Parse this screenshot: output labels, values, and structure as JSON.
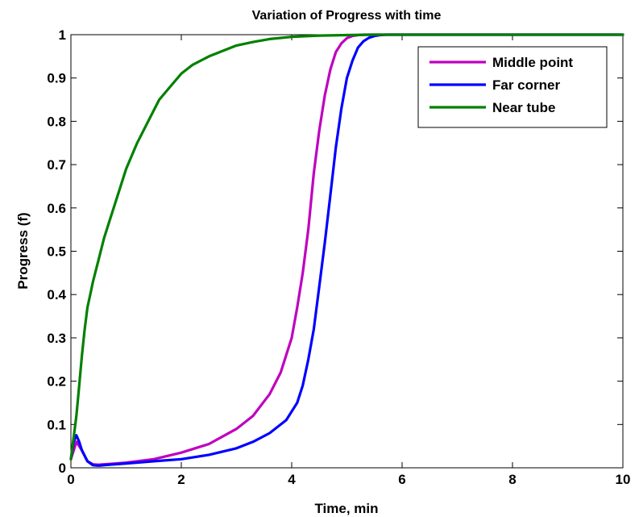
{
  "chart_data": {
    "type": "line",
    "title": "Variation of Progress with time",
    "xlabel": "Time, min",
    "ylabel": "Progress (f)",
    "xlim": [
      0,
      10
    ],
    "ylim": [
      0,
      1
    ],
    "xticks": [
      0,
      2,
      4,
      6,
      8,
      10
    ],
    "yticks": [
      0,
      0.1,
      0.2,
      0.3,
      0.4,
      0.5,
      0.6,
      0.7,
      0.8,
      0.9,
      1
    ],
    "xtick_labels": [
      "0",
      "2",
      "4",
      "6",
      "8",
      "10"
    ],
    "ytick_labels": [
      "0",
      "0.1",
      "0.2",
      "0.3",
      "0.4",
      "0.5",
      "0.6",
      "0.7",
      "0.8",
      "0.9",
      "1"
    ],
    "grid": false,
    "legend_position": "top-right",
    "series": [
      {
        "name": "Middle point",
        "color": "#bf00bf",
        "x": [
          0.0,
          0.1,
          0.2,
          0.3,
          0.4,
          0.5,
          0.7,
          1.0,
          1.5,
          2.0,
          2.5,
          3.0,
          3.3,
          3.6,
          3.8,
          4.0,
          4.1,
          4.2,
          4.3,
          4.4,
          4.5,
          4.6,
          4.7,
          4.8,
          4.9,
          5.0,
          5.1,
          5.2,
          5.3,
          5.5,
          6.0,
          7.0,
          8.0,
          9.0,
          10.0
        ],
        "y": [
          0.02,
          0.06,
          0.04,
          0.015,
          0.008,
          0.007,
          0.009,
          0.012,
          0.02,
          0.035,
          0.055,
          0.09,
          0.12,
          0.17,
          0.22,
          0.3,
          0.37,
          0.45,
          0.55,
          0.68,
          0.78,
          0.86,
          0.92,
          0.96,
          0.98,
          0.992,
          0.997,
          0.999,
          1.0,
          1.0,
          1.0,
          1.0,
          1.0,
          1.0,
          1.0
        ]
      },
      {
        "name": "Far corner",
        "color": "#0000ff",
        "x": [
          0.0,
          0.05,
          0.1,
          0.15,
          0.2,
          0.3,
          0.4,
          0.5,
          0.7,
          1.0,
          1.5,
          2.0,
          2.5,
          3.0,
          3.3,
          3.6,
          3.9,
          4.1,
          4.2,
          4.3,
          4.4,
          4.5,
          4.6,
          4.7,
          4.8,
          4.9,
          5.0,
          5.1,
          5.2,
          5.3,
          5.4,
          5.5,
          5.6,
          5.7,
          6.0,
          7.0,
          8.0,
          9.0,
          10.0
        ],
        "y": [
          0.02,
          0.06,
          0.075,
          0.06,
          0.04,
          0.015,
          0.006,
          0.005,
          0.007,
          0.01,
          0.015,
          0.02,
          0.03,
          0.045,
          0.06,
          0.08,
          0.11,
          0.15,
          0.19,
          0.25,
          0.32,
          0.42,
          0.52,
          0.63,
          0.74,
          0.83,
          0.9,
          0.94,
          0.97,
          0.985,
          0.993,
          0.997,
          0.999,
          1.0,
          1.0,
          1.0,
          1.0,
          1.0,
          1.0
        ]
      },
      {
        "name": "Near tube",
        "color": "#008000",
        "x": [
          0.0,
          0.05,
          0.1,
          0.15,
          0.2,
          0.25,
          0.3,
          0.35,
          0.4,
          0.5,
          0.6,
          0.7,
          0.8,
          0.9,
          1.0,
          1.2,
          1.4,
          1.6,
          1.8,
          2.0,
          2.2,
          2.5,
          2.8,
          3.0,
          3.3,
          3.6,
          4.0,
          4.5,
          5.0,
          5.5,
          6.0,
          7.0,
          8.0,
          9.0,
          10.0
        ],
        "y": [
          0.02,
          0.07,
          0.12,
          0.19,
          0.26,
          0.32,
          0.37,
          0.4,
          0.43,
          0.48,
          0.53,
          0.57,
          0.61,
          0.65,
          0.69,
          0.75,
          0.8,
          0.85,
          0.88,
          0.91,
          0.93,
          0.95,
          0.965,
          0.975,
          0.983,
          0.99,
          0.995,
          0.998,
          0.999,
          1.0,
          1.0,
          1.0,
          1.0,
          1.0,
          1.0
        ]
      }
    ]
  }
}
